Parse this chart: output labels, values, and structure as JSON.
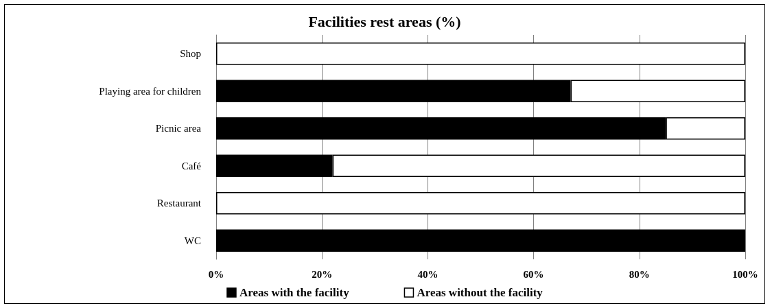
{
  "chart_data": {
    "type": "bar",
    "orientation": "horizontal",
    "stacked": true,
    "title": "Facilities rest areas (%)",
    "categories": [
      "Shop",
      "Playing area for children",
      "Picnic area",
      "Café",
      "Restaurant",
      "WC"
    ],
    "series": [
      {
        "name": "Areas with the facility",
        "color": "#000000",
        "values": [
          0,
          67,
          85,
          22,
          0,
          100
        ]
      },
      {
        "name": "Areas without the facility",
        "color": "#ffffff",
        "values": [
          100,
          33,
          15,
          78,
          100,
          0
        ]
      }
    ],
    "xlim": [
      0,
      100
    ],
    "xticks": [
      {
        "value": 0,
        "label": "0%"
      },
      {
        "value": 20,
        "label": "20%"
      },
      {
        "value": 40,
        "label": "40%"
      },
      {
        "value": 60,
        "label": "60%"
      },
      {
        "value": 80,
        "label": "80%"
      },
      {
        "value": 100,
        "label": "100%"
      }
    ],
    "grid": "x",
    "legend": "bottom"
  }
}
